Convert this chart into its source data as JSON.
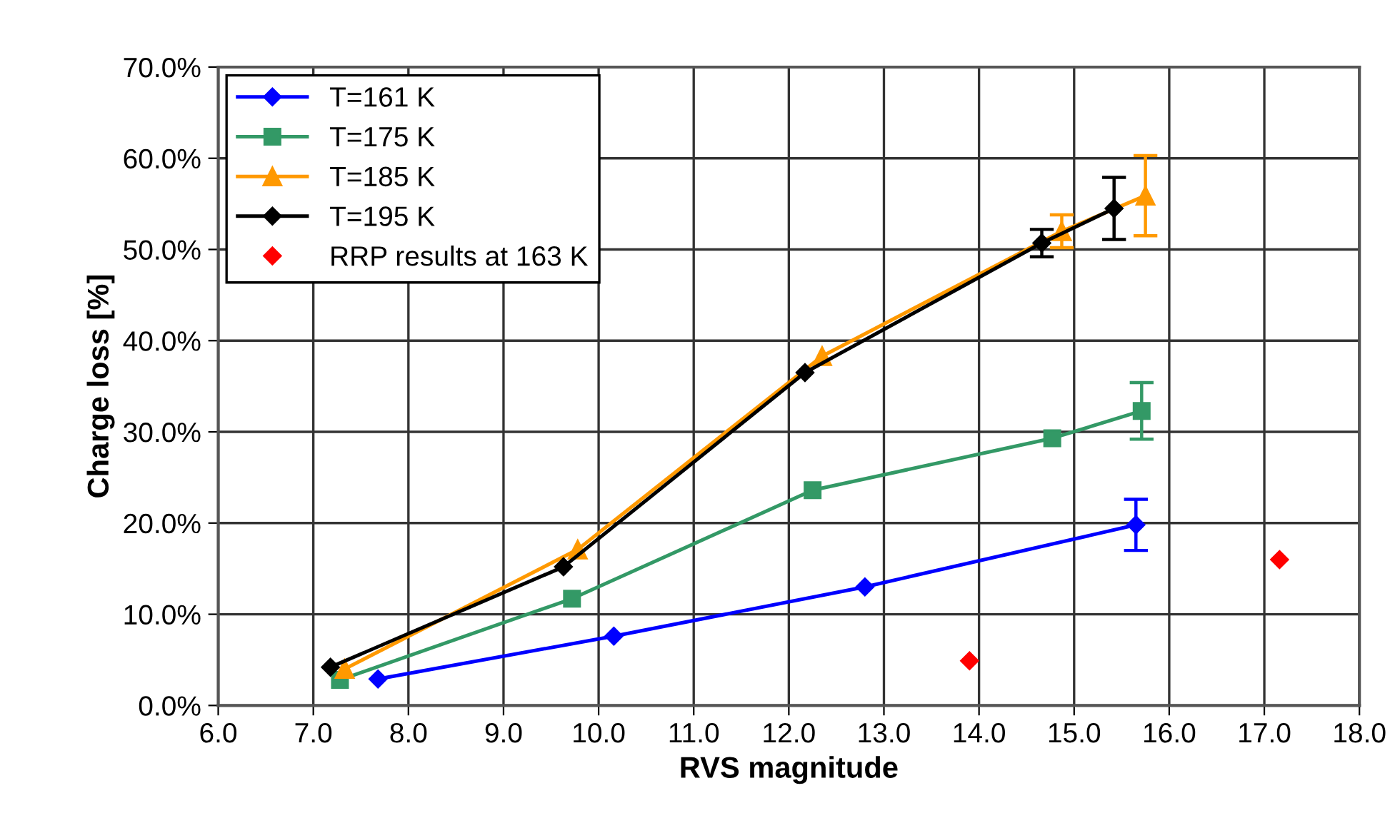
{
  "chart_data": {
    "type": "line",
    "xlabel": "RVS magnitude",
    "ylabel": "Charge loss [%]",
    "xlim": [
      6.0,
      18.0
    ],
    "ylim": [
      0,
      70
    ],
    "xticks": [
      {
        "value": 6,
        "label": "6.0"
      },
      {
        "value": 7,
        "label": "7.0"
      },
      {
        "value": 8,
        "label": "8.0"
      },
      {
        "value": 9,
        "label": "9.0"
      },
      {
        "value": 10,
        "label": "10.0"
      },
      {
        "value": 11,
        "label": "11.0"
      },
      {
        "value": 12,
        "label": "12.0"
      },
      {
        "value": 13,
        "label": "13.0"
      },
      {
        "value": 14,
        "label": "14.0"
      },
      {
        "value": 15,
        "label": "15.0"
      },
      {
        "value": 16,
        "label": "16.0"
      },
      {
        "value": 17,
        "label": "17.0"
      },
      {
        "value": 18,
        "label": "18.0"
      }
    ],
    "yticks": [
      {
        "value": 0,
        "label": "0.0%"
      },
      {
        "value": 10,
        "label": "10.0%"
      },
      {
        "value": 20,
        "label": "20.0%"
      },
      {
        "value": 30,
        "label": "30.0%"
      },
      {
        "value": 40,
        "label": "40.0%"
      },
      {
        "value": 50,
        "label": "50.0%"
      },
      {
        "value": 60,
        "label": "60.0%"
      },
      {
        "value": 70,
        "label": "70.0%"
      }
    ],
    "grid": true,
    "legend": "top left",
    "series": [
      {
        "name": "T=161 K",
        "color": "#0000ff",
        "marker": "diamond",
        "x": [
          7.68,
          10.16,
          12.8,
          15.65
        ],
        "values": [
          2.9,
          7.6,
          13.0,
          19.8
        ],
        "errors": [
          null,
          null,
          null,
          2.8
        ]
      },
      {
        "name": "T=175 K",
        "color": "#339966",
        "marker": "square",
        "x": [
          7.28,
          9.72,
          12.25,
          14.77,
          15.71
        ],
        "values": [
          2.8,
          11.7,
          23.6,
          29.3,
          32.3
        ],
        "errors": [
          null,
          null,
          null,
          null,
          3.1
        ]
      },
      {
        "name": "T=185 K",
        "color": "#ff9900",
        "marker": "triangle",
        "x": [
          7.33,
          9.78,
          12.35,
          14.87,
          15.75
        ],
        "values": [
          4.0,
          17.1,
          38.3,
          52.0,
          55.9
        ],
        "errors": [
          null,
          null,
          null,
          1.8,
          4.4
        ]
      },
      {
        "name": "T=195 K",
        "color": "#000000",
        "marker": "diamond",
        "x": [
          7.18,
          9.63,
          12.17,
          14.66,
          15.42
        ],
        "values": [
          4.2,
          15.2,
          36.5,
          50.7,
          54.5
        ],
        "errors": [
          null,
          null,
          null,
          1.5,
          3.4
        ]
      },
      {
        "name": "RRP results at 163 K",
        "type": "scatter",
        "color": "#ff0000",
        "marker": "diamond",
        "x": [
          13.9,
          17.16
        ],
        "values": [
          4.9,
          16.0
        ]
      }
    ]
  }
}
